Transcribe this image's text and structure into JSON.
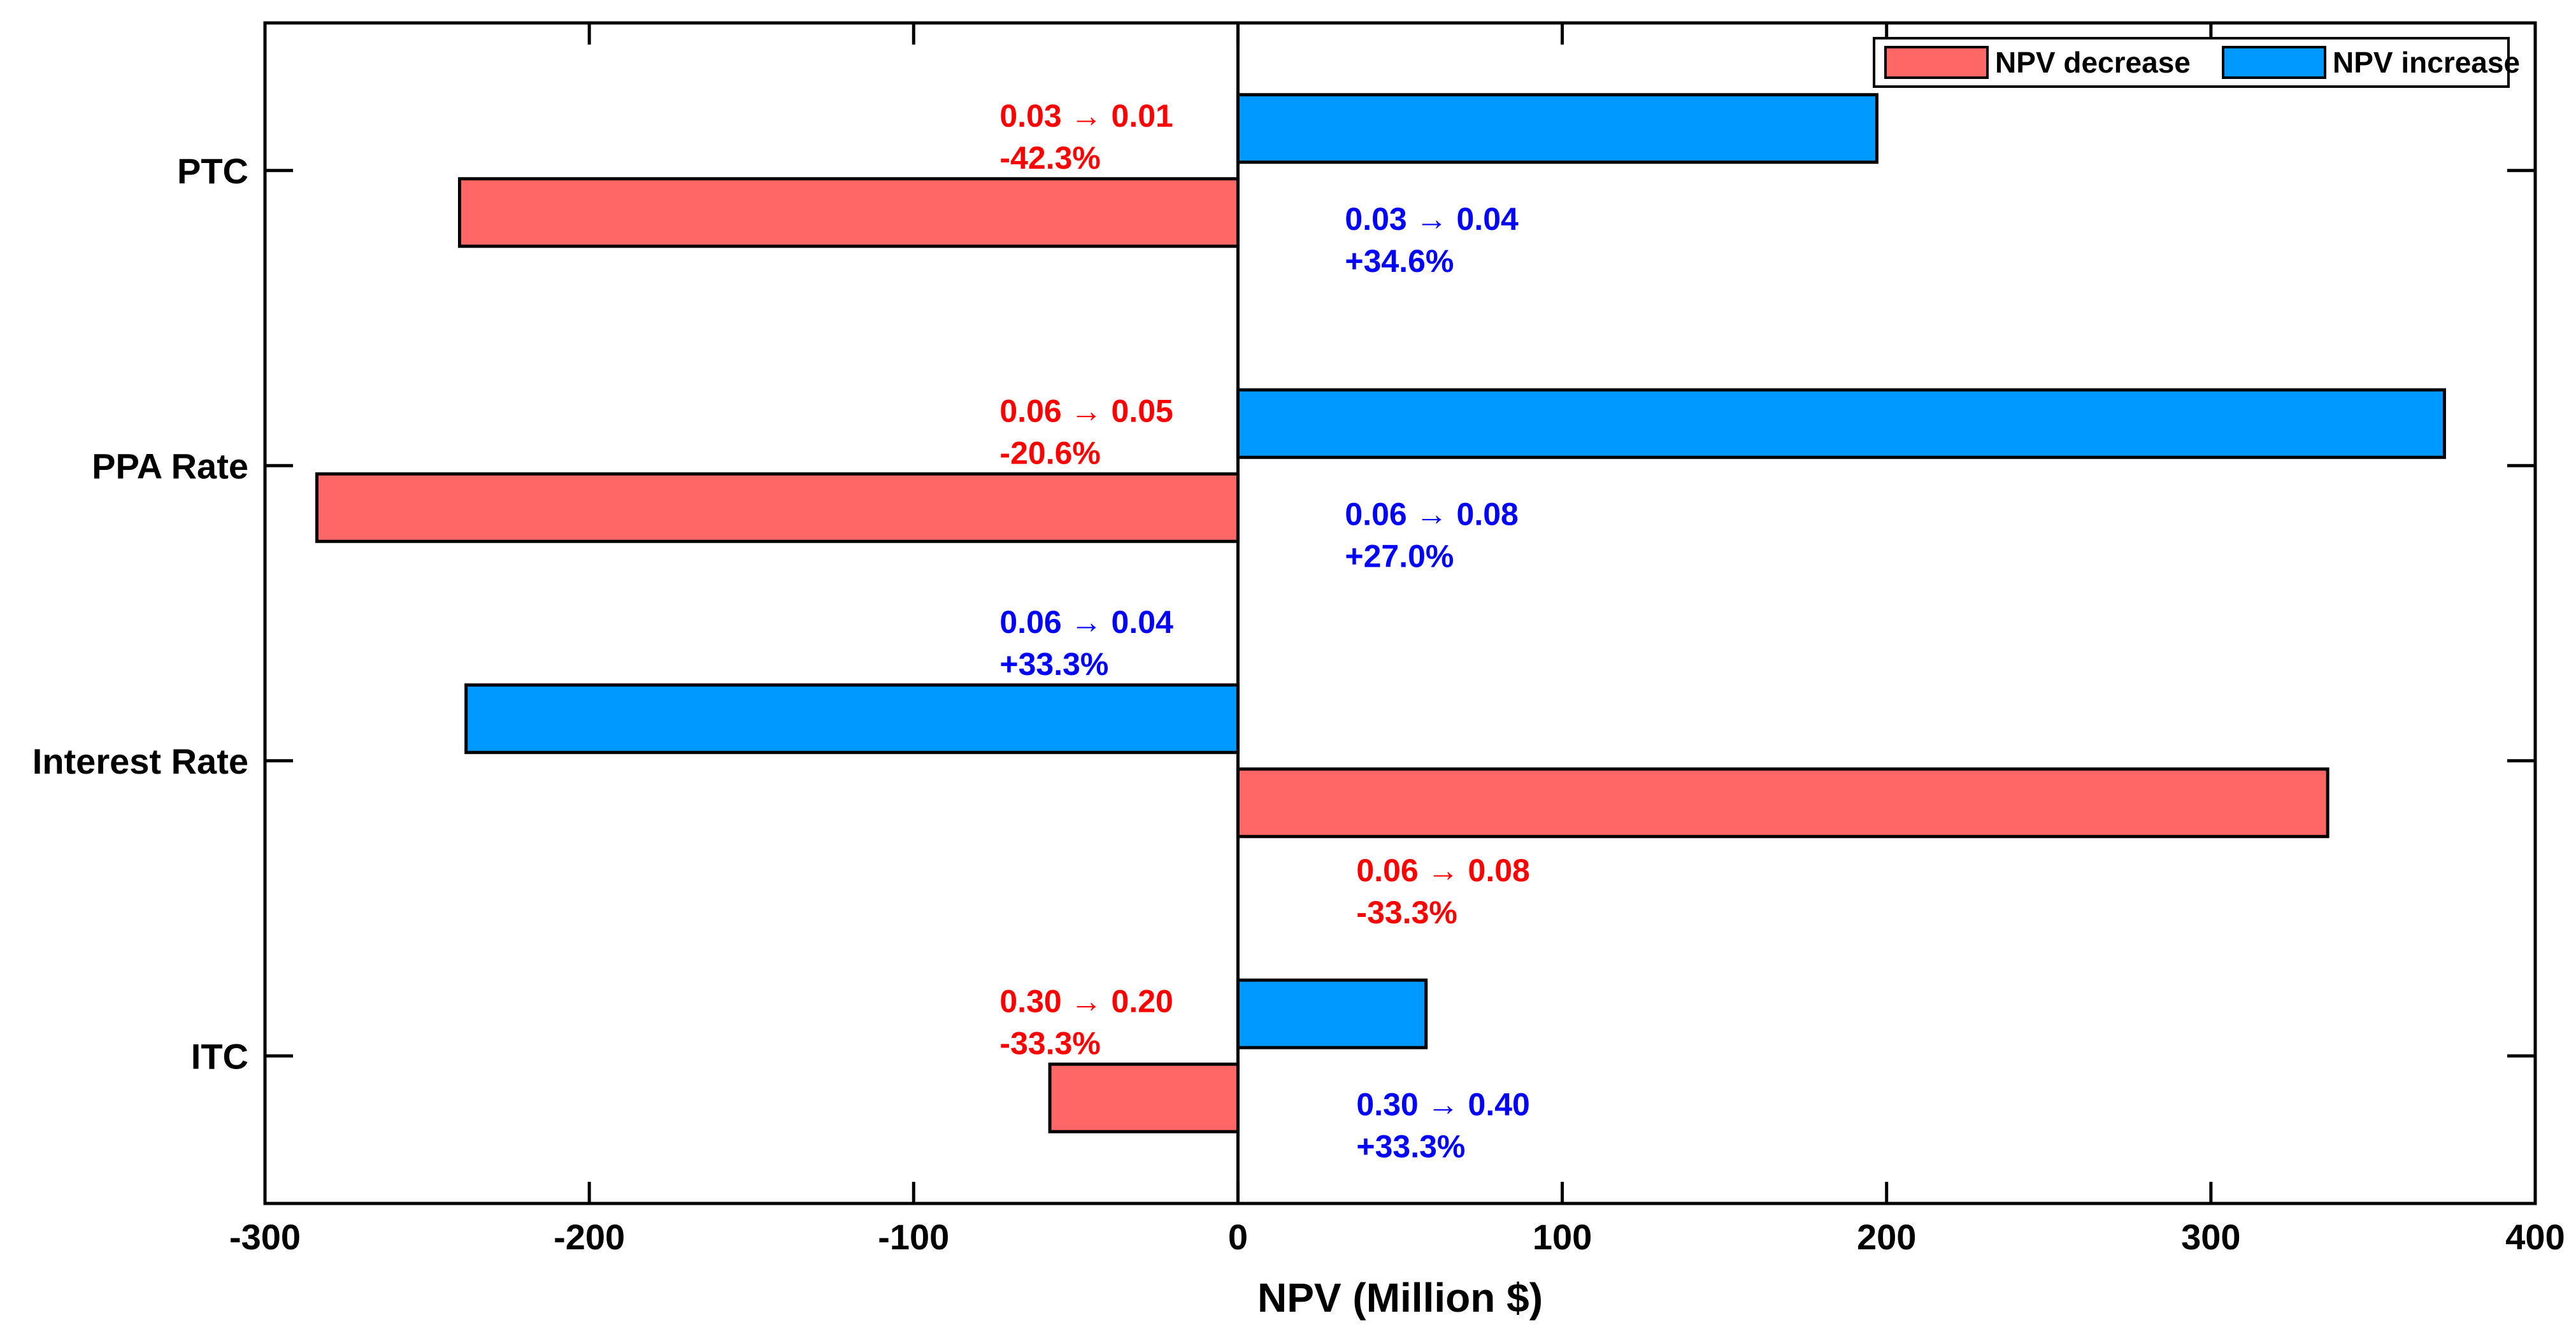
{
  "chart_data": {
    "type": "bar",
    "orientation": "horizontal",
    "title": "",
    "xlabel": "NPV (Million $)",
    "ylabel": "",
    "xlim": [
      -300,
      400
    ],
    "xticks": [
      -300,
      -200,
      -100,
      0,
      100,
      200,
      300,
      400
    ],
    "grid": false,
    "legend_position": "top-right",
    "colors": {
      "decrease": "#ff6666",
      "increase": "#0099ff",
      "decrease_text": "#ff0000",
      "increase_text": "#0000ff",
      "axis": "#000000"
    },
    "legend": [
      {
        "key": "decrease",
        "label": "NPV decrease"
      },
      {
        "key": "increase",
        "label": "NPV increase"
      }
    ],
    "categories": [
      "PTC",
      "PPA Rate",
      "Interest Rate",
      "ITC"
    ],
    "bars": [
      {
        "category": "PTC",
        "slot": "upper",
        "kind": "increase",
        "value": 197,
        "annotation": {
          "side": "right",
          "line1": "0.03 → 0.04",
          "line2": "+34.6%"
        }
      },
      {
        "category": "PTC",
        "slot": "lower",
        "kind": "decrease",
        "value": -240,
        "annotation": {
          "side": "left",
          "line1": "0.03 → 0.01",
          "line2": "-42.3%"
        }
      },
      {
        "category": "PPA Rate",
        "slot": "upper",
        "kind": "increase",
        "value": 372,
        "annotation": {
          "side": "right",
          "line1": "0.06 → 0.08",
          "line2": "+27.0%"
        }
      },
      {
        "category": "PPA Rate",
        "slot": "lower",
        "kind": "decrease",
        "value": -284,
        "annotation": {
          "side": "left",
          "line1": "0.06 → 0.05",
          "line2": "-20.6%"
        }
      },
      {
        "category": "Interest Rate",
        "slot": "upper",
        "kind": "increase",
        "value": -238,
        "annotation": {
          "side": "left",
          "line1": "0.06 → 0.04",
          "line2": "+33.3%"
        }
      },
      {
        "category": "Interest Rate",
        "slot": "lower",
        "kind": "decrease",
        "value": 336,
        "annotation": {
          "side": "right",
          "line1": "0.06 → 0.08",
          "line2": "-33.3%"
        }
      },
      {
        "category": "ITC",
        "slot": "upper",
        "kind": "increase",
        "value": 58,
        "annotation": {
          "side": "right",
          "line1": "0.30 → 0.40",
          "line2": "+33.3%"
        }
      },
      {
        "category": "ITC",
        "slot": "lower",
        "kind": "decrease",
        "value": -58,
        "annotation": {
          "side": "left",
          "line1": "0.30 → 0.20",
          "line2": "-33.3%"
        }
      }
    ]
  }
}
